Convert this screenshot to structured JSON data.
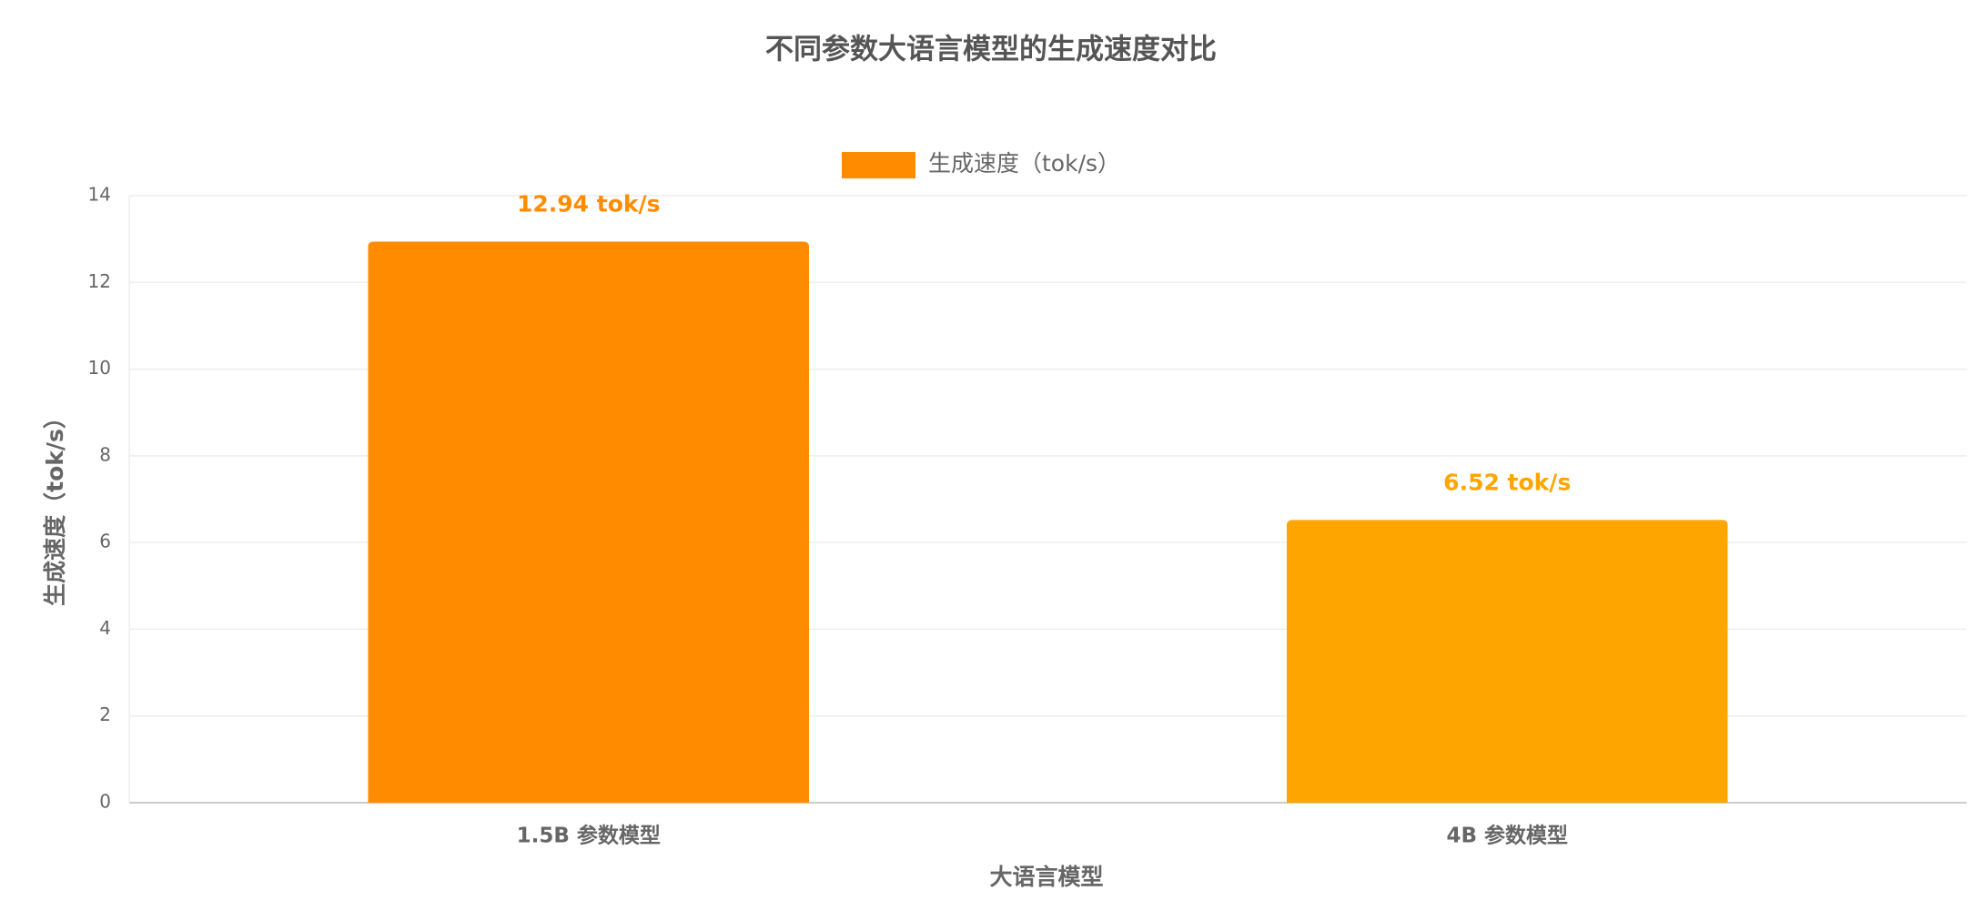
{
  "chart_data": {
    "type": "bar",
    "title": "不同参数大语言模型的生成速度对比",
    "x_label": "大语言模型",
    "y_label": "生成速度（tok/s）",
    "categories": [
      "1.5B 参数模型",
      "4B 参数模型"
    ],
    "series": [
      {
        "name": "生成速度（tok/s）",
        "colors": [
          "#FF8C00",
          "#FFA500"
        ],
        "values": [
          12.94,
          6.52
        ],
        "value_labels": [
          "12.94 tok/s",
          "6.52 tok/s"
        ]
      }
    ],
    "ylim": [
      0,
      14
    ],
    "yticks": [
      0,
      2,
      4,
      6,
      8,
      10,
      12,
      14
    ],
    "grid": true
  }
}
